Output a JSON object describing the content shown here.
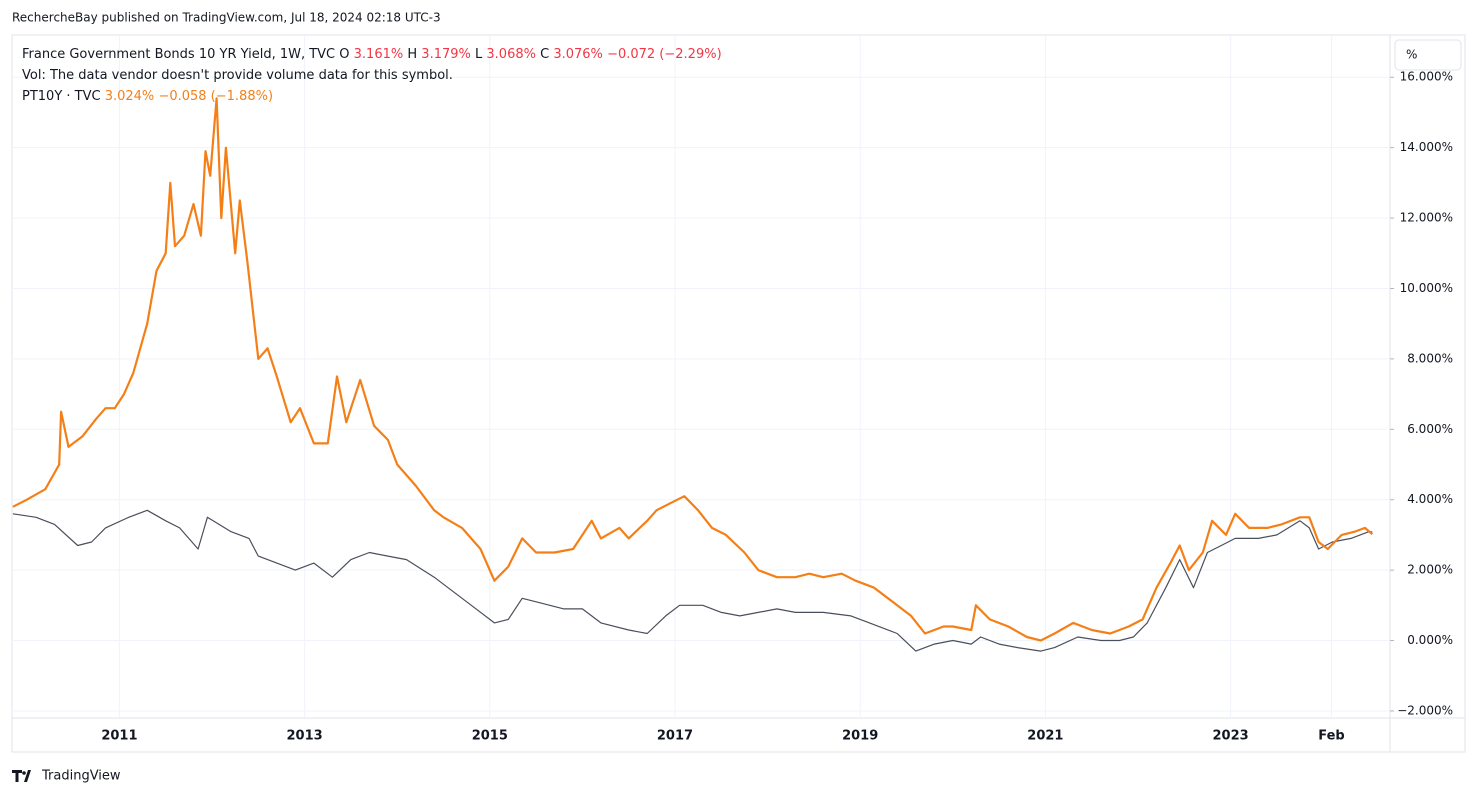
{
  "header": "RechercheBay published on TradingView.com, Jul 18, 2024 02:18 UTC-3",
  "footer": "TradingView",
  "unit": "%",
  "ohlc": {
    "o_label": "O",
    "o": "3.161%",
    "h_label": "H",
    "h": "3.179%",
    "l_label": "L",
    "l": "3.068%",
    "c_label": "C",
    "c": "3.076%",
    "change": "−0.072 (−2.29%)"
  },
  "volume_note": "Vol: The data vendor doesn't provide volume data for this symbol.",
  "pt_legend": {
    "last": "3.024%",
    "change": "−0.058 (−1.88%)"
  },
  "chart_data": {
    "type": "line",
    "xlim": [
      2009.84,
      2024.7
    ],
    "ylim": [
      -2.2,
      17.2
    ],
    "xticks": [
      2011,
      2013,
      2015,
      2017,
      2019,
      2021,
      2023,
      {
        "value": 2024.09,
        "label": "Feb"
      }
    ],
    "yticks": [
      {
        "value": -2,
        "label": "−2.000%"
      },
      {
        "value": 0,
        "label": "0.000%"
      },
      {
        "value": 2,
        "label": "2.000%"
      },
      {
        "value": 4,
        "label": "4.000%"
      },
      {
        "value": 6,
        "label": "6.000%"
      },
      {
        "value": 8,
        "label": "8.000%"
      },
      {
        "value": 10,
        "label": "10.000%"
      },
      {
        "value": 12,
        "label": "12.000%"
      },
      {
        "value": 14,
        "label": "14.000%"
      },
      {
        "value": 16,
        "label": "16.000%"
      }
    ],
    "grid": true,
    "series": [
      {
        "name": "France Government Bonds 10 YR Yield, 1W, TVC",
        "color": "#4a4f5c",
        "width": 1.2,
        "x": [
          2009.85,
          2010.1,
          2010.3,
          2010.55,
          2010.7,
          2010.85,
          2011.1,
          2011.3,
          2011.5,
          2011.65,
          2011.85,
          2011.95,
          2012.2,
          2012.4,
          2012.5,
          2012.7,
          2012.9,
          2013.1,
          2013.3,
          2013.5,
          2013.7,
          2013.9,
          2014.1,
          2014.4,
          2014.6,
          2014.8,
          2015.05,
          2015.2,
          2015.35,
          2015.5,
          2015.8,
          2016.0,
          2016.2,
          2016.5,
          2016.7,
          2016.9,
          2017.05,
          2017.3,
          2017.5,
          2017.7,
          2017.9,
          2018.1,
          2018.3,
          2018.6,
          2018.9,
          2019.1,
          2019.4,
          2019.6,
          2019.8,
          2020.0,
          2020.2,
          2020.3,
          2020.5,
          2020.7,
          2020.95,
          2021.1,
          2021.35,
          2021.6,
          2021.8,
          2021.95,
          2022.1,
          2022.3,
          2022.45,
          2022.6,
          2022.75,
          2022.9,
          2023.05,
          2023.3,
          2023.5,
          2023.75,
          2023.85,
          2023.95,
          2024.1,
          2024.3,
          2024.5,
          2024.53
        ],
        "values": [
          3.6,
          3.5,
          3.3,
          2.7,
          2.8,
          3.2,
          3.5,
          3.7,
          3.4,
          3.2,
          2.6,
          3.5,
          3.1,
          2.9,
          2.4,
          2.2,
          2.0,
          2.2,
          1.8,
          2.3,
          2.5,
          2.4,
          2.3,
          1.8,
          1.4,
          1.0,
          0.5,
          0.6,
          1.2,
          1.1,
          0.9,
          0.9,
          0.5,
          0.3,
          0.2,
          0.7,
          1.0,
          1.0,
          0.8,
          0.7,
          0.8,
          0.9,
          0.8,
          0.8,
          0.7,
          0.5,
          0.2,
          -0.3,
          -0.1,
          0.0,
          -0.1,
          0.1,
          -0.1,
          -0.2,
          -0.3,
          -0.2,
          0.1,
          0.0,
          0.0,
          0.1,
          0.5,
          1.5,
          2.3,
          1.5,
          2.5,
          2.7,
          2.9,
          2.9,
          3.0,
          3.4,
          3.2,
          2.6,
          2.8,
          2.9,
          3.1,
          3.08
        ]
      },
      {
        "name": "PT10Y · TVC",
        "color": "#f57f17",
        "width": 2.2,
        "x": [
          2009.85,
          2010.0,
          2010.2,
          2010.35,
          2010.37,
          2010.45,
          2010.6,
          2010.75,
          2010.85,
          2010.95,
          2011.05,
          2011.15,
          2011.3,
          2011.4,
          2011.5,
          2011.55,
          2011.6,
          2011.7,
          2011.8,
          2011.88,
          2011.93,
          2011.98,
          2012.05,
          2012.1,
          2012.15,
          2012.25,
          2012.3,
          2012.38,
          2012.5,
          2012.6,
          2012.7,
          2012.85,
          2012.95,
          2013.1,
          2013.25,
          2013.35,
          2013.45,
          2013.6,
          2013.75,
          2013.9,
          2014.0,
          2014.2,
          2014.4,
          2014.5,
          2014.7,
          2014.9,
          2015.05,
          2015.2,
          2015.35,
          2015.5,
          2015.7,
          2015.9,
          2016.1,
          2016.2,
          2016.4,
          2016.5,
          2016.7,
          2016.8,
          2016.95,
          2017.1,
          2017.25,
          2017.4,
          2017.55,
          2017.75,
          2017.9,
          2018.1,
          2018.3,
          2018.45,
          2018.6,
          2018.8,
          2018.95,
          2019.15,
          2019.35,
          2019.55,
          2019.7,
          2019.9,
          2020.0,
          2020.2,
          2020.25,
          2020.4,
          2020.6,
          2020.8,
          2020.95,
          2021.1,
          2021.3,
          2021.5,
          2021.7,
          2021.9,
          2022.05,
          2022.2,
          2022.35,
          2022.45,
          2022.55,
          2022.7,
          2022.8,
          2022.95,
          2023.05,
          2023.2,
          2023.4,
          2023.55,
          2023.75,
          2023.85,
          2023.95,
          2024.05,
          2024.2,
          2024.35,
          2024.45,
          2024.53
        ],
        "values": [
          3.8,
          4.0,
          4.3,
          5.0,
          6.5,
          5.5,
          5.8,
          6.3,
          6.6,
          6.6,
          7.0,
          7.6,
          9.0,
          10.5,
          11.0,
          13.0,
          11.2,
          11.5,
          12.4,
          11.5,
          13.9,
          13.2,
          15.4,
          12.0,
          14.0,
          11.0,
          12.5,
          10.8,
          8.0,
          8.3,
          7.5,
          6.2,
          6.6,
          5.6,
          5.6,
          7.5,
          6.2,
          7.4,
          6.1,
          5.7,
          5.0,
          4.4,
          3.7,
          3.5,
          3.2,
          2.6,
          1.7,
          2.1,
          2.9,
          2.5,
          2.5,
          2.6,
          3.4,
          2.9,
          3.2,
          2.9,
          3.4,
          3.7,
          3.9,
          4.1,
          3.7,
          3.2,
          3.0,
          2.5,
          2.0,
          1.8,
          1.8,
          1.9,
          1.8,
          1.9,
          1.7,
          1.5,
          1.1,
          0.7,
          0.2,
          0.4,
          0.4,
          0.3,
          1.0,
          0.6,
          0.4,
          0.1,
          0.0,
          0.2,
          0.5,
          0.3,
          0.2,
          0.4,
          0.6,
          1.5,
          2.2,
          2.7,
          2.0,
          2.5,
          3.4,
          3.0,
          3.6,
          3.2,
          3.2,
          3.3,
          3.5,
          3.5,
          2.8,
          2.6,
          3.0,
          3.1,
          3.2,
          3.02
        ]
      }
    ]
  }
}
